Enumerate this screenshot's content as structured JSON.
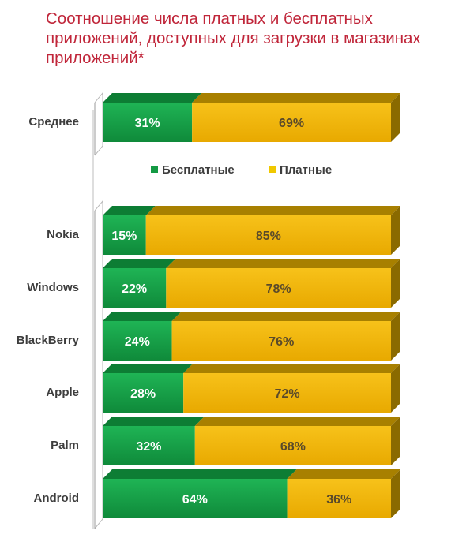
{
  "title": "Соотношение числа платных и бесплатных приложений, доступных для загрузки в магазинах приложений*",
  "colors": {
    "free": "#149a44",
    "paid": "#f0b400",
    "title": "#c0263a"
  },
  "chart_data": [
    {
      "type": "bar",
      "orientation": "horizontal-stacked-100",
      "categories": [
        "Среднее"
      ],
      "series": [
        {
          "name": "Бесплатные",
          "values": [
            31
          ]
        },
        {
          "name": "Платные",
          "values": [
            69
          ]
        }
      ],
      "unit": "%",
      "xlim": [
        0,
        100
      ],
      "legend": "bottom-center"
    },
    {
      "type": "bar",
      "orientation": "horizontal-stacked-100",
      "categories": [
        "Nokia",
        "Windows",
        "BlackBerry",
        "Apple",
        "Palm",
        "Android"
      ],
      "series": [
        {
          "name": "Бесплатные",
          "values": [
            15,
            22,
            24,
            28,
            32,
            64
          ]
        },
        {
          "name": "Платные",
          "values": [
            85,
            78,
            76,
            72,
            68,
            36
          ]
        }
      ],
      "unit": "%",
      "xlim": [
        0,
        100
      ]
    }
  ]
}
